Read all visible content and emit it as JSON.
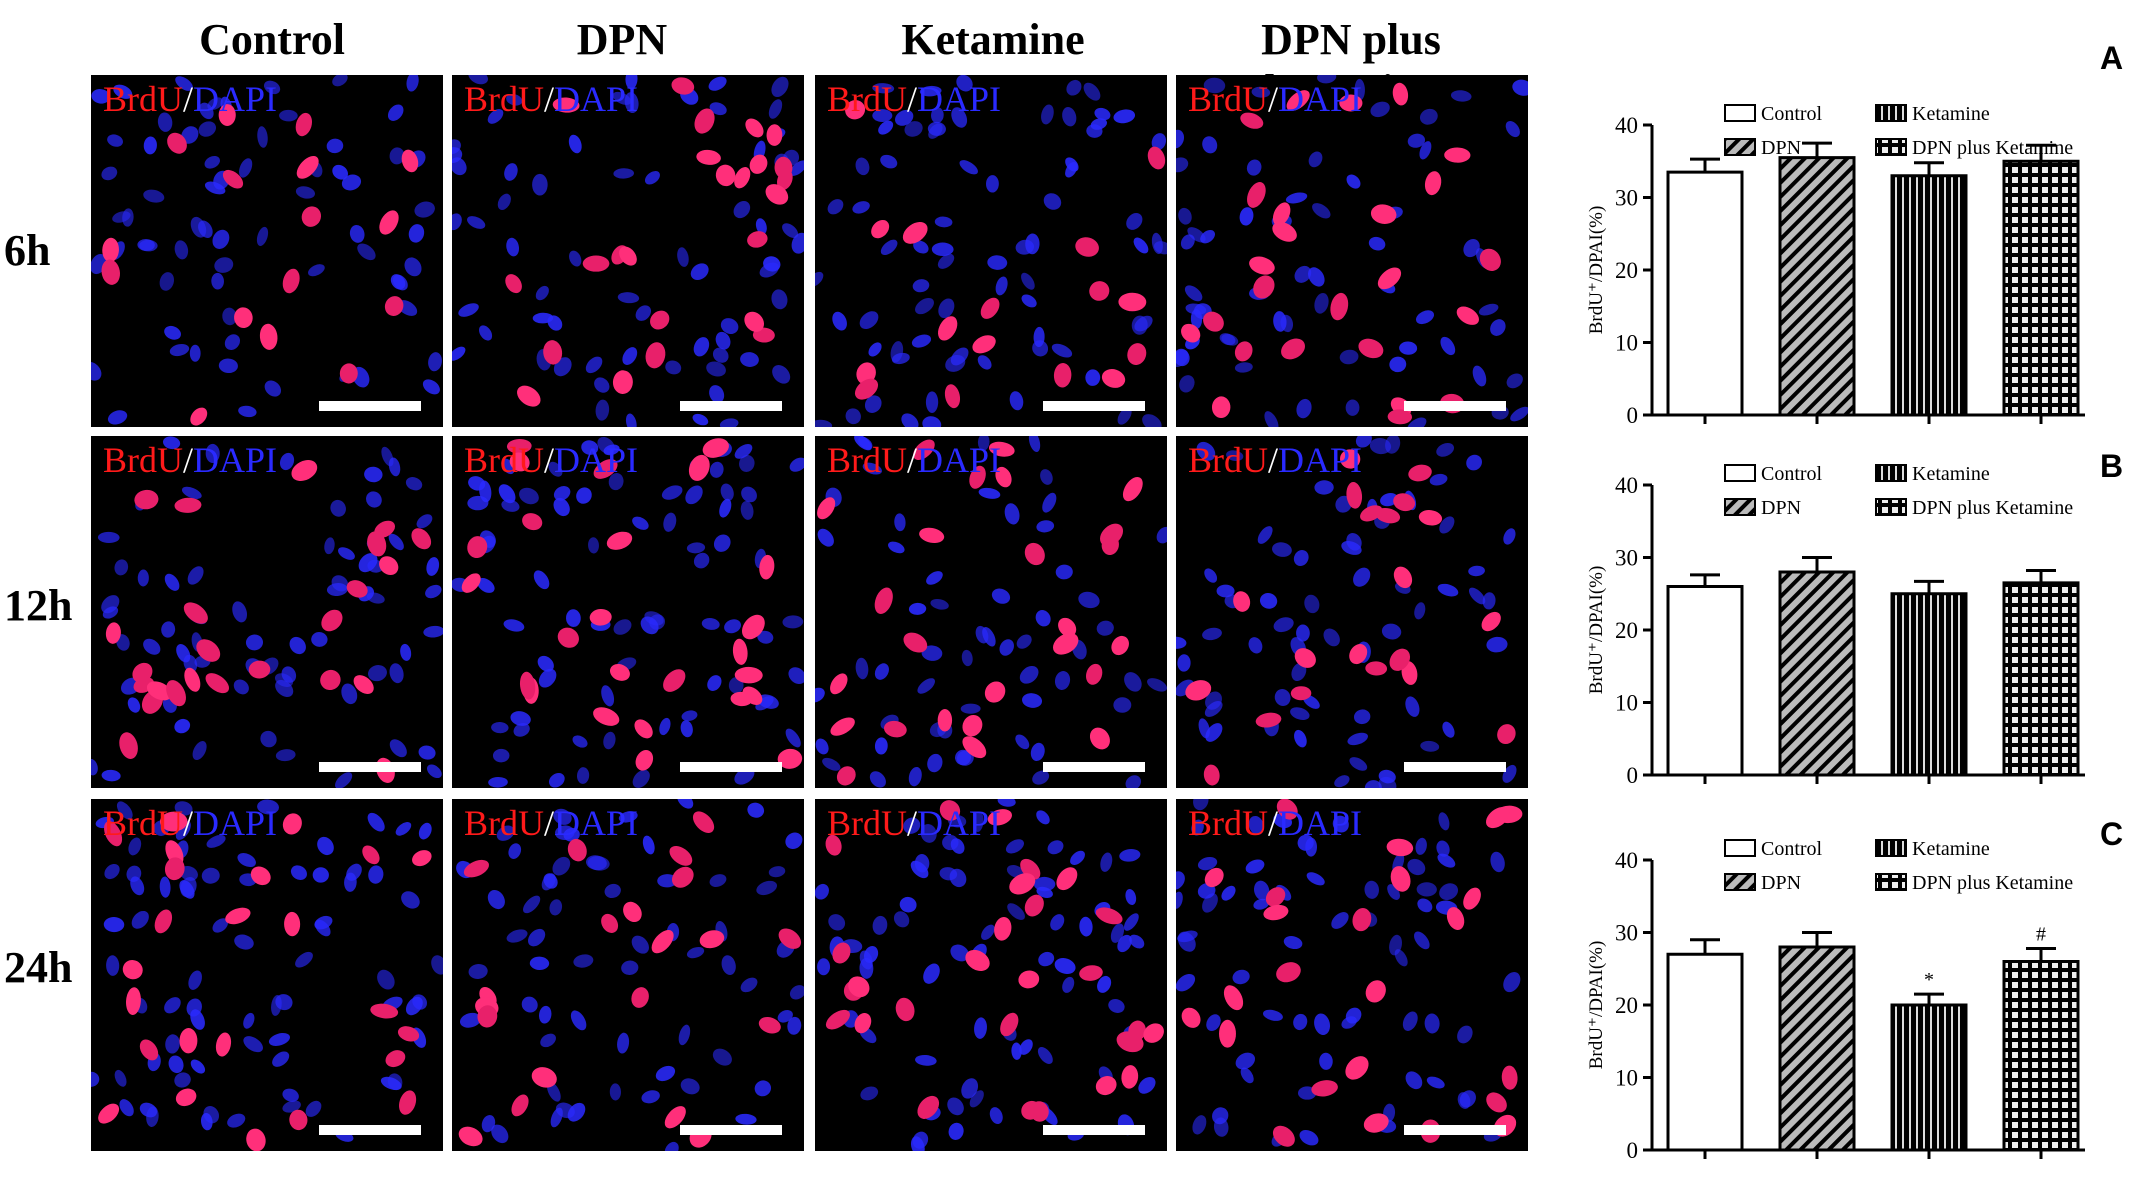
{
  "column_titles": [
    "Control",
    "DPN",
    "Ketamine",
    "DPN plus ketamine"
  ],
  "row_labels": [
    "6h",
    "12h",
    "24h"
  ],
  "overlay": {
    "brdu": "BrdU",
    "slash": "/",
    "dapi": "DAPI"
  },
  "colors": {
    "brdu": "#ff1a1a",
    "dapi": "#2a2aff",
    "background": "#000000"
  },
  "chart_data": [
    {
      "type": "bar",
      "panel": "A",
      "ylabel": "BrdU⁺/DPAI(%)",
      "ylim": [
        0,
        40
      ],
      "yticks": [
        "0",
        "10",
        "20",
        "30",
        "40"
      ],
      "categories": [
        "Control",
        "DPN",
        "Ketamine",
        "DPN plus Ketamine"
      ],
      "values": [
        33.5,
        35.5,
        33,
        35
      ],
      "errors": [
        1.8,
        2.0,
        1.8,
        2.2
      ],
      "annotations": [
        "",
        "",
        "",
        ""
      ],
      "legend": [
        "Control",
        "DPN",
        "Ketamine",
        "DPN plus Ketamine"
      ]
    },
    {
      "type": "bar",
      "panel": "B",
      "ylabel": "BrdU⁺/DPAI(%)",
      "ylim": [
        0,
        40
      ],
      "yticks": [
        "0",
        "10",
        "20",
        "30",
        "40"
      ],
      "categories": [
        "Control",
        "DPN",
        "Ketamine",
        "DPN plus Ketamine"
      ],
      "values": [
        26,
        28,
        25,
        26.5
      ],
      "errors": [
        1.6,
        2.0,
        1.7,
        1.7
      ],
      "annotations": [
        "",
        "",
        "",
        ""
      ],
      "legend": [
        "Control",
        "DPN",
        "Ketamine",
        "DPN plus Ketamine"
      ]
    },
    {
      "type": "bar",
      "panel": "C",
      "ylabel": "BrdU⁺/DPAI(%)",
      "ylim": [
        0,
        40
      ],
      "yticks": [
        "0",
        "10",
        "20",
        "30",
        "40"
      ],
      "categories": [
        "Control",
        "DPN",
        "Ketamine",
        "DPN plus Ketamine"
      ],
      "values": [
        27,
        28,
        20,
        26
      ],
      "errors": [
        2.0,
        2.0,
        1.5,
        1.8
      ],
      "annotations": [
        "",
        "",
        "*",
        "#"
      ],
      "legend": [
        "Control",
        "DPN",
        "Ketamine",
        "DPN plus Ketamine"
      ]
    }
  ]
}
